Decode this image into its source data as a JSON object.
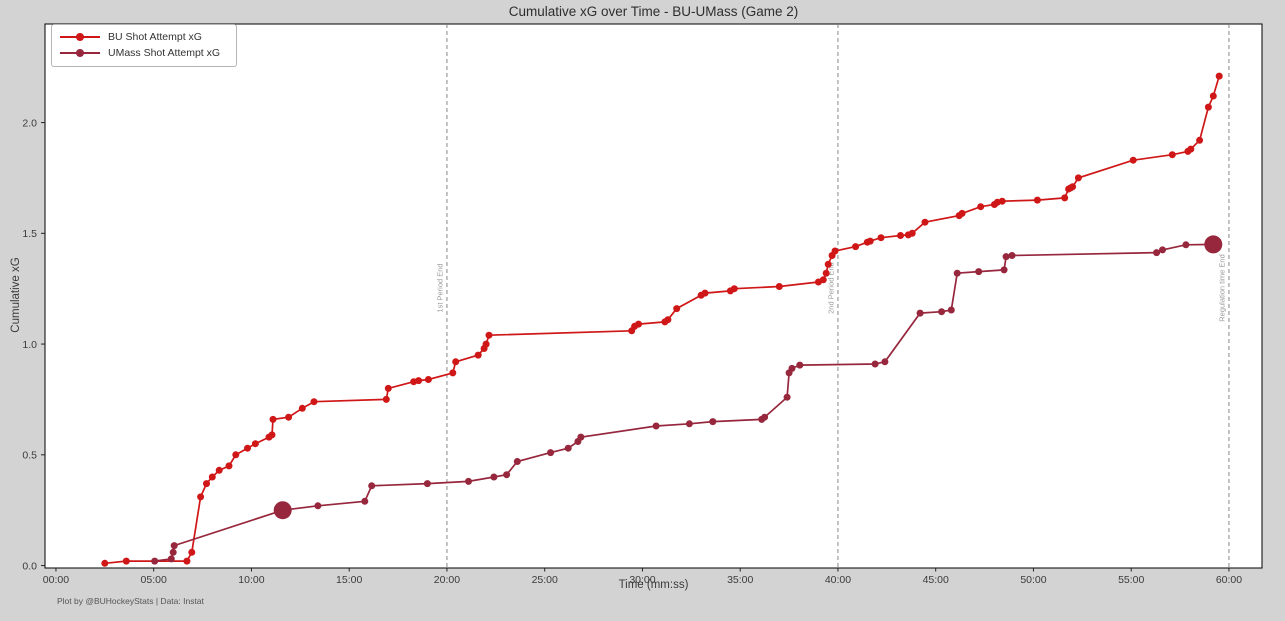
{
  "title": "Cumulative xG over Time - BU-UMass (Game 2)",
  "footer": "Plot by @BUHockeyStats | Data: Instat",
  "colors": {
    "figure_bg": "#d3d3d3",
    "plot_bg": "#ffffff",
    "spine": "#000000",
    "tick_label": "#3b3b3b",
    "period_line": "#7a7a7a",
    "period_label": "#9a9a9a",
    "bu_red": "#d01717",
    "umass_maroon": "#97273c"
  },
  "legend": {
    "items": [
      {
        "label": "BU Shot Attempt xG",
        "color": "#d01717"
      },
      {
        "label": "UMass Shot Attempt xG",
        "color": "#97273c"
      }
    ]
  },
  "chart_data": {
    "type": "line",
    "title": "Cumulative xG over Time - BU-UMass (Game 2)",
    "xlabel": "Time (mm:ss)",
    "ylabel": "Cumulative xG",
    "grid": false,
    "legend_position": "upper-left",
    "xlim_minutes": [
      -0.56,
      61.69
    ],
    "ylim": [
      -0.011,
      2.445
    ],
    "x_ticks": {
      "minutes": [
        0,
        5,
        10,
        15,
        20,
        25,
        30,
        35,
        40,
        45,
        50,
        55,
        60
      ],
      "labels": [
        "00:00",
        "05:00",
        "10:00",
        "15:00",
        "20:00",
        "25:00",
        "30:00",
        "35:00",
        "40:00",
        "45:00",
        "50:00",
        "55:00",
        "60:00"
      ]
    },
    "y_ticks": {
      "values": [
        0.0,
        0.5,
        1.0,
        1.5,
        2.0
      ],
      "labels": [
        "0.0",
        "0.5",
        "1.0",
        "1.5",
        "2.0"
      ]
    },
    "period_markers": [
      {
        "minute": 20,
        "label": "1st Period End"
      },
      {
        "minute": 40,
        "label": "2nd Period End"
      },
      {
        "minute": 60,
        "label": "Regulation time End"
      }
    ],
    "series": [
      {
        "name": "BU Shot Attempt xG",
        "color": "#d01717",
        "marker_radius": 3.5,
        "points": [
          [
            2.5,
            0.01
          ],
          [
            3.6,
            0.02
          ],
          [
            6.7,
            0.02
          ],
          [
            6.95,
            0.06
          ],
          [
            7.4,
            0.31
          ],
          [
            7.7,
            0.37
          ],
          [
            8.0,
            0.4
          ],
          [
            8.35,
            0.43
          ],
          [
            8.85,
            0.45
          ],
          [
            9.2,
            0.5
          ],
          [
            9.8,
            0.53
          ],
          [
            10.2,
            0.55
          ],
          [
            10.9,
            0.58
          ],
          [
            11.05,
            0.59
          ],
          [
            11.1,
            0.66
          ],
          [
            11.9,
            0.67
          ],
          [
            12.6,
            0.71
          ],
          [
            13.2,
            0.74
          ],
          [
            16.9,
            0.75
          ],
          [
            17.0,
            0.8
          ],
          [
            18.3,
            0.83
          ],
          [
            18.55,
            0.835
          ],
          [
            19.05,
            0.84
          ],
          [
            20.3,
            0.87
          ],
          [
            20.45,
            0.92
          ],
          [
            21.6,
            0.95
          ],
          [
            21.9,
            0.98
          ],
          [
            22.0,
            1.0
          ],
          [
            22.15,
            1.04
          ],
          [
            29.45,
            1.06
          ],
          [
            29.6,
            1.08
          ],
          [
            29.8,
            1.09
          ],
          [
            31.15,
            1.1
          ],
          [
            31.3,
            1.11
          ],
          [
            31.75,
            1.16
          ],
          [
            33.0,
            1.22
          ],
          [
            33.2,
            1.23
          ],
          [
            34.5,
            1.24
          ],
          [
            34.7,
            1.25
          ],
          [
            37.0,
            1.26
          ],
          [
            39.0,
            1.28
          ],
          [
            39.25,
            1.29
          ],
          [
            39.4,
            1.32
          ],
          [
            39.5,
            1.36
          ],
          [
            39.7,
            1.4
          ],
          [
            39.85,
            1.42
          ],
          [
            40.9,
            1.44
          ],
          [
            41.5,
            1.46
          ],
          [
            41.65,
            1.465
          ],
          [
            42.2,
            1.48
          ],
          [
            43.2,
            1.49
          ],
          [
            43.6,
            1.493
          ],
          [
            43.8,
            1.5
          ],
          [
            44.45,
            1.55
          ],
          [
            46.2,
            1.58
          ],
          [
            46.35,
            1.59
          ],
          [
            47.3,
            1.62
          ],
          [
            48.0,
            1.63
          ],
          [
            48.15,
            1.64
          ],
          [
            48.4,
            1.645
          ],
          [
            50.2,
            1.65
          ],
          [
            51.6,
            1.66
          ],
          [
            51.8,
            1.7
          ],
          [
            51.9,
            1.705
          ],
          [
            52.0,
            1.71
          ],
          [
            52.3,
            1.75
          ],
          [
            55.1,
            1.83
          ],
          [
            57.1,
            1.855
          ],
          [
            57.9,
            1.87
          ],
          [
            58.05,
            1.88
          ],
          [
            58.5,
            1.92
          ],
          [
            58.95,
            2.07
          ],
          [
            59.2,
            2.12
          ],
          [
            59.5,
            2.21
          ]
        ],
        "goal_markers": []
      },
      {
        "name": "UMass Shot Attempt xG",
        "color": "#97273c",
        "marker_radius": 3.5,
        "points": [
          [
            5.05,
            0.02
          ],
          [
            5.9,
            0.03
          ],
          [
            6.0,
            0.06
          ],
          [
            6.05,
            0.09
          ],
          [
            11.6,
            0.25
          ],
          [
            13.4,
            0.27
          ],
          [
            15.8,
            0.29
          ],
          [
            16.15,
            0.36
          ],
          [
            19.0,
            0.37
          ],
          [
            21.1,
            0.38
          ],
          [
            22.4,
            0.4
          ],
          [
            23.05,
            0.41
          ],
          [
            23.6,
            0.47
          ],
          [
            25.3,
            0.51
          ],
          [
            26.2,
            0.53
          ],
          [
            26.7,
            0.56
          ],
          [
            26.85,
            0.58
          ],
          [
            30.7,
            0.63
          ],
          [
            32.4,
            0.64
          ],
          [
            33.6,
            0.65
          ],
          [
            36.1,
            0.66
          ],
          [
            36.25,
            0.67
          ],
          [
            37.4,
            0.76
          ],
          [
            37.5,
            0.87
          ],
          [
            37.65,
            0.89
          ],
          [
            38.05,
            0.905
          ],
          [
            41.9,
            0.91
          ],
          [
            42.4,
            0.92
          ],
          [
            44.2,
            1.14
          ],
          [
            45.3,
            1.146
          ],
          [
            45.8,
            1.154
          ],
          [
            46.1,
            1.32
          ],
          [
            47.2,
            1.327
          ],
          [
            48.5,
            1.335
          ],
          [
            48.6,
            1.395
          ],
          [
            48.9,
            1.4
          ],
          [
            56.3,
            1.413
          ],
          [
            56.6,
            1.425
          ],
          [
            57.8,
            1.448
          ],
          [
            59.2,
            1.45
          ]
        ],
        "goal_markers": [
          [
            11.6,
            0.25
          ],
          [
            59.2,
            1.45
          ]
        ]
      }
    ]
  }
}
